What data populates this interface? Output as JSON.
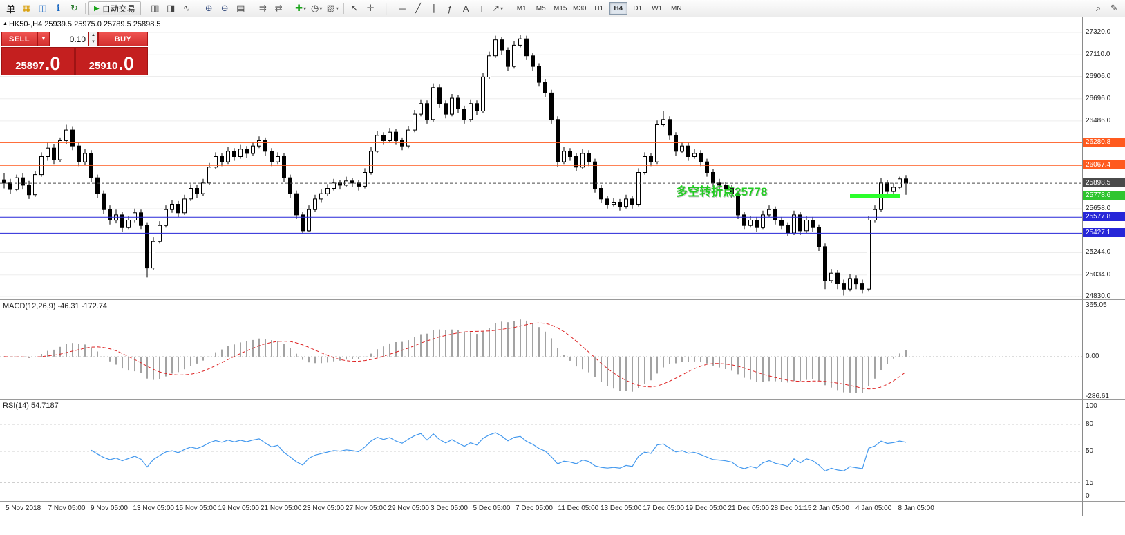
{
  "toolbar": {
    "dropdown_glyph": "▾",
    "groups": [
      {
        "name": "file",
        "icons": [
          {
            "name": "new-order-button",
            "glyph": "单",
            "color": "#111"
          },
          {
            "name": "new-chart-icon",
            "glyph": "▦",
            "color": "#d79b00"
          },
          {
            "name": "profiles-icon",
            "glyph": "◫",
            "color": "#1565c0"
          },
          {
            "name": "market-watch-icon",
            "glyph": "ℹ",
            "color": "#1565c0"
          },
          {
            "name": "refresh-icon",
            "glyph": "↻",
            "color": "#2e7d32"
          }
        ]
      },
      {
        "name": "autotrading",
        "button": {
          "name": "autotrading-button",
          "label": "自动交易",
          "glyph": "▶",
          "glyph_color": "#18a318"
        }
      },
      {
        "name": "chart-types",
        "icons": [
          {
            "name": "bars-icon",
            "glyph": "▥"
          },
          {
            "name": "candles-icon",
            "glyph": "◨"
          },
          {
            "name": "line-chart-icon",
            "glyph": "∿"
          }
        ]
      },
      {
        "name": "zoom",
        "icons": [
          {
            "name": "zoom-in-icon",
            "glyph": "⊕",
            "color": "#334a7c"
          },
          {
            "name": "zoom-out-icon",
            "glyph": "⊖",
            "color": "#334a7c"
          },
          {
            "name": "tile-windows-icon",
            "glyph": "▤"
          }
        ]
      },
      {
        "name": "scrolling",
        "icons": [
          {
            "name": "auto-scroll-icon",
            "glyph": "⇉"
          },
          {
            "name": "chart-shift-icon",
            "glyph": "⇄"
          }
        ]
      },
      {
        "name": "insert",
        "icons": [
          {
            "name": "indicators-icon",
            "glyph": "✚",
            "color": "#18a318",
            "dropdown": true
          },
          {
            "name": "periods-icon",
            "glyph": "◷",
            "dropdown": true
          },
          {
            "name": "templates-icon",
            "glyph": "▧",
            "dropdown": true
          }
        ]
      },
      {
        "name": "draw",
        "icons": [
          {
            "name": "cursor-icon",
            "glyph": "↖"
          },
          {
            "name": "crosshair-icon",
            "glyph": "✛"
          },
          {
            "name": "vertical-line-icon",
            "glyph": "│"
          },
          {
            "name": "horizontal-line-icon",
            "glyph": "─"
          },
          {
            "name": "trendline-icon",
            "glyph": "╱"
          },
          {
            "name": "channel-icon",
            "glyph": "∥"
          },
          {
            "name": "fibonacci-icon",
            "glyph": "ƒ"
          },
          {
            "name": "text-icon",
            "glyph": "A"
          },
          {
            "name": "text-label-icon",
            "glyph": "T"
          },
          {
            "name": "shapes-icon",
            "glyph": "↗",
            "dropdown": true
          }
        ]
      },
      {
        "name": "timeframes",
        "timeframes": [
          "M1",
          "M5",
          "M15",
          "M30",
          "H1",
          "H4",
          "D1",
          "W1",
          "MN"
        ],
        "active": "H4"
      }
    ],
    "right_icons": [
      {
        "name": "search-icon",
        "glyph": "⌕"
      },
      {
        "name": "edit-icon",
        "glyph": "✎"
      }
    ]
  },
  "symbol_info": {
    "marker": "▲",
    "text": "HK50-,H4 25939.5 25975.0 25789.5 25898.5"
  },
  "trade_panel": {
    "sell_label": "SELL",
    "buy_label": "BUY",
    "lot": "0.10",
    "dd_glyph": "▼",
    "up_glyph": "▲",
    "down_glyph": "▼",
    "sell_price": "25897",
    "sell_price_big": ".0",
    "buy_price": "25910",
    "buy_price_big": ".0"
  },
  "chart_data": {
    "type": "candlestick",
    "symbol": "HK50-",
    "timeframe": "H4",
    "price_axis": {
      "max": 27320.0,
      "min": 24830.0,
      "ticks": [
        "27320.0",
        "27110.0",
        "26906.0",
        "26696.0",
        "26486.0",
        "25658.0",
        "25244.0",
        "25034.0",
        "24830.0"
      ]
    },
    "levels": [
      {
        "name": "resistance-upper",
        "price": 26280.8,
        "label": "26280.8",
        "color": "#ff5a1e",
        "style": "solid"
      },
      {
        "name": "resistance-lower",
        "price": 26067.4,
        "label": "26067.4",
        "color": "#ff5a1e",
        "style": "solid"
      },
      {
        "name": "current-bid",
        "price": 25898.5,
        "label": "25898.5",
        "color": "#4a4a4a",
        "style": "dashed"
      },
      {
        "name": "pivot-green",
        "price": 25778.6,
        "label": "25778.6",
        "color": "#2fc52f",
        "style": "solid"
      },
      {
        "name": "support-upper",
        "price": 25577.8,
        "label": "25577.8",
        "color": "#2626d8",
        "style": "solid"
      },
      {
        "name": "support-lower",
        "price": 25427.1,
        "label": "25427.1",
        "color": "#2626d8",
        "style": "solid"
      }
    ],
    "annotation": {
      "text": "多空转折点25778",
      "color": "#22cc22",
      "bar": 108,
      "price": 25912
    },
    "highlight": {
      "price": 25778.6,
      "from_bar": 136,
      "to_bar": 144,
      "color": "#2bff2b"
    },
    "ohlc": [
      [
        25930,
        25990,
        25850,
        25900
      ],
      [
        25900,
        25940,
        25800,
        25840
      ],
      [
        25840,
        25980,
        25820,
        25950
      ],
      [
        25950,
        25990,
        25840,
        25880
      ],
      [
        25880,
        25920,
        25750,
        25790
      ],
      [
        25790,
        26010,
        25770,
        25980
      ],
      [
        25980,
        26190,
        25960,
        26150
      ],
      [
        26150,
        26280,
        26110,
        26230
      ],
      [
        26230,
        26270,
        26080,
        26120
      ],
      [
        26120,
        26330,
        26100,
        26300
      ],
      [
        26300,
        26450,
        26270,
        26400
      ],
      [
        26400,
        26430,
        26210,
        26250
      ],
      [
        26250,
        26280,
        26060,
        26100
      ],
      [
        26100,
        26220,
        26070,
        26180
      ],
      [
        26180,
        26210,
        25910,
        25950
      ],
      [
        25950,
        25980,
        25760,
        25800
      ],
      [
        25800,
        25830,
        25610,
        25650
      ],
      [
        25650,
        25690,
        25510,
        25550
      ],
      [
        25550,
        25650,
        25520,
        25600
      ],
      [
        25600,
        25630,
        25440,
        25480
      ],
      [
        25480,
        25590,
        25460,
        25550
      ],
      [
        25550,
        25660,
        25530,
        25620
      ],
      [
        25620,
        25650,
        25460,
        25500
      ],
      [
        25500,
        25530,
        25010,
        25100
      ],
      [
        25100,
        25390,
        25080,
        25350
      ],
      [
        25350,
        25540,
        25330,
        25500
      ],
      [
        25500,
        25690,
        25480,
        25650
      ],
      [
        25650,
        25740,
        25620,
        25700
      ],
      [
        25700,
        25730,
        25580,
        25620
      ],
      [
        25620,
        25790,
        25600,
        25750
      ],
      [
        25750,
        25890,
        25730,
        25850
      ],
      [
        25850,
        25880,
        25760,
        25800
      ],
      [
        25800,
        25940,
        25780,
        25900
      ],
      [
        25900,
        26090,
        25880,
        26050
      ],
      [
        26050,
        26190,
        26030,
        26150
      ],
      [
        26150,
        26180,
        26060,
        26100
      ],
      [
        26100,
        26240,
        26080,
        26200
      ],
      [
        26200,
        26230,
        26110,
        26150
      ],
      [
        26150,
        26260,
        26130,
        26220
      ],
      [
        26220,
        26250,
        26140,
        26180
      ],
      [
        26180,
        26290,
        26160,
        26250
      ],
      [
        26250,
        26340,
        26230,
        26300
      ],
      [
        26300,
        26330,
        26160,
        26200
      ],
      [
        26200,
        26230,
        26060,
        26100
      ],
      [
        26100,
        26190,
        26080,
        26150
      ],
      [
        26150,
        26180,
        25910,
        25950
      ],
      [
        25950,
        25980,
        25760,
        25800
      ],
      [
        25800,
        25830,
        25560,
        25600
      ],
      [
        25600,
        25630,
        25430,
        25450
      ],
      [
        25450,
        25690,
        25440,
        25650
      ],
      [
        25650,
        25790,
        25630,
        25750
      ],
      [
        25750,
        25840,
        25720,
        25800
      ],
      [
        25800,
        25890,
        25780,
        25850
      ],
      [
        25850,
        25940,
        25830,
        25900
      ],
      [
        25900,
        25930,
        25840,
        25880
      ],
      [
        25880,
        25960,
        25860,
        25920
      ],
      [
        25920,
        25950,
        25860,
        25900
      ],
      [
        25900,
        25930,
        25830,
        25870
      ],
      [
        25870,
        26040,
        25850,
        26000
      ],
      [
        26000,
        26240,
        25980,
        26200
      ],
      [
        26200,
        26390,
        26180,
        26350
      ],
      [
        26350,
        26380,
        26260,
        26300
      ],
      [
        26300,
        26420,
        26280,
        26380
      ],
      [
        26380,
        26410,
        26260,
        26300
      ],
      [
        26300,
        26330,
        26210,
        26250
      ],
      [
        26250,
        26440,
        26230,
        26400
      ],
      [
        26400,
        26590,
        26380,
        26550
      ],
      [
        26550,
        26690,
        26530,
        26650
      ],
      [
        26650,
        26680,
        26460,
        26500
      ],
      [
        26500,
        26840,
        26480,
        26800
      ],
      [
        26800,
        26830,
        26610,
        26650
      ],
      [
        26650,
        26680,
        26510,
        26550
      ],
      [
        26550,
        26740,
        26530,
        26700
      ],
      [
        26700,
        26730,
        26560,
        26600
      ],
      [
        26600,
        26630,
        26460,
        26500
      ],
      [
        26500,
        26690,
        26480,
        26650
      ],
      [
        26650,
        26680,
        26540,
        26580
      ],
      [
        26580,
        26940,
        26560,
        26900
      ],
      [
        26900,
        27140,
        26880,
        27100
      ],
      [
        27100,
        27290,
        27080,
        27250
      ],
      [
        27250,
        27280,
        27110,
        27150
      ],
      [
        27150,
        27180,
        26960,
        27000
      ],
      [
        27000,
        27240,
        26980,
        27200
      ],
      [
        27200,
        27300,
        27180,
        27260
      ],
      [
        27260,
        27290,
        27060,
        27100
      ],
      [
        27100,
        27130,
        26960,
        27000
      ],
      [
        27000,
        27030,
        26810,
        26850
      ],
      [
        26850,
        26880,
        26710,
        26750
      ],
      [
        26750,
        26780,
        26460,
        26500
      ],
      [
        26500,
        26530,
        26050,
        26100
      ],
      [
        26100,
        26240,
        26080,
        26200
      ],
      [
        26200,
        26230,
        26110,
        26150
      ],
      [
        26150,
        26180,
        26010,
        26050
      ],
      [
        26050,
        26220,
        26030,
        26180
      ],
      [
        26180,
        26210,
        26060,
        26100
      ],
      [
        26100,
        26130,
        25810,
        25850
      ],
      [
        25850,
        25880,
        25710,
        25750
      ],
      [
        25750,
        25780,
        25660,
        25700
      ],
      [
        25700,
        25760,
        25680,
        25720
      ],
      [
        25720,
        25750,
        25640,
        25680
      ],
      [
        25680,
        25790,
        25660,
        25750
      ],
      [
        25750,
        25780,
        25660,
        25700
      ],
      [
        25700,
        26040,
        25680,
        26000
      ],
      [
        26000,
        26190,
        25980,
        26150
      ],
      [
        26150,
        26180,
        26060,
        26100
      ],
      [
        26100,
        26490,
        26080,
        26450
      ],
      [
        26450,
        26580,
        26430,
        26500
      ],
      [
        26500,
        26530,
        26310,
        26350
      ],
      [
        26350,
        26380,
        26160,
        26200
      ],
      [
        26200,
        26290,
        26180,
        26250
      ],
      [
        26250,
        26280,
        26110,
        26150
      ],
      [
        26150,
        26220,
        26130,
        26180
      ],
      [
        26180,
        26210,
        26060,
        26100
      ],
      [
        26100,
        26130,
        25960,
        26000
      ],
      [
        26000,
        26030,
        25860,
        25900
      ],
      [
        25900,
        25940,
        25840,
        25880
      ],
      [
        25880,
        25910,
        25810,
        25850
      ],
      [
        25850,
        25880,
        25760,
        25800
      ],
      [
        25800,
        25830,
        25560,
        25600
      ],
      [
        25600,
        25630,
        25460,
        25500
      ],
      [
        25500,
        25590,
        25480,
        25550
      ],
      [
        25550,
        25580,
        25440,
        25480
      ],
      [
        25480,
        25640,
        25460,
        25600
      ],
      [
        25600,
        25690,
        25580,
        25650
      ],
      [
        25650,
        25680,
        25510,
        25550
      ],
      [
        25550,
        25580,
        25460,
        25500
      ],
      [
        25500,
        25530,
        25400,
        25430
      ],
      [
        25430,
        25640,
        25410,
        25600
      ],
      [
        25600,
        25630,
        25410,
        25450
      ],
      [
        25450,
        25590,
        25430,
        25550
      ],
      [
        25550,
        25580,
        25440,
        25480
      ],
      [
        25480,
        25510,
        25260,
        25300
      ],
      [
        25300,
        25330,
        24900,
        24980
      ],
      [
        24980,
        25090,
        24960,
        25050
      ],
      [
        25050,
        25080,
        24900,
        24950
      ],
      [
        24950,
        24990,
        24840,
        24900
      ],
      [
        24900,
        25040,
        24880,
        25000
      ],
      [
        25000,
        25030,
        24900,
        24950
      ],
      [
        24950,
        24990,
        24860,
        24900
      ],
      [
        24900,
        25590,
        24880,
        25550
      ],
      [
        25550,
        25690,
        25530,
        25650
      ],
      [
        25650,
        25950,
        25630,
        25900
      ],
      [
        25900,
        25930,
        25780,
        25820
      ],
      [
        25820,
        25900,
        25800,
        25860
      ],
      [
        25860,
        25960,
        25840,
        25939.5
      ],
      [
        25939.5,
        25975.0,
        25789.5,
        25898.5
      ]
    ]
  },
  "macd": {
    "label": "MACD(12,26,9) -46.31 -172.74",
    "fast": 12,
    "slow": 26,
    "signal": 9,
    "axis_max": 365.05,
    "axis_min": -286.61,
    "axis_labels": [
      "365.05",
      "0.00",
      "-286.61"
    ],
    "histogram_color": "#a3a3a3",
    "signal_color": "#dd2222"
  },
  "rsi": {
    "label": "RSI(14) 54.7187",
    "period": 14,
    "line_color": "#4499ee",
    "levels": [
      80,
      50,
      15
    ],
    "axis_labels": [
      {
        "label": "100",
        "value": 100
      },
      {
        "label": "80",
        "value": 80
      },
      {
        "label": "50",
        "value": 50
      },
      {
        "label": "15",
        "value": 15
      },
      {
        "label": "0",
        "value": 0
      }
    ]
  },
  "time_axis": [
    "5 Nov 2018",
    "7 Nov 05:00",
    "9 Nov 05:00",
    "13 Nov 05:00",
    "15 Nov 05:00",
    "19 Nov 05:00",
    "21 Nov 05:00",
    "23 Nov 05:00",
    "27 Nov 05:00",
    "29 Nov 05:00",
    "3 Dec 05:00",
    "5 Dec 05:00",
    "7 Dec 05:00",
    "11 Dec 05:00",
    "13 Dec 05:00",
    "17 Dec 05:00",
    "19 Dec 05:00",
    "21 Dec 05:00",
    "28 Dec 01:15",
    "2 Jan 05:00",
    "4 Jan 05:00",
    "8 Jan 05:00"
  ]
}
